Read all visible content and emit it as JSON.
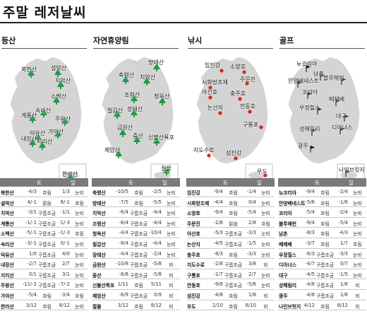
{
  "title": "주말 레저날씨",
  "columns": [
    {
      "name": "등산",
      "days": [
        "토",
        "일"
      ],
      "map_labels": [
        "북한산",
        "설악산",
        "치악산",
        "계룡산",
        "소백산",
        "속리산",
        "덕유산",
        "주왕산",
        "가야산",
        "내장산",
        "지리산",
        "한라산"
      ],
      "rows": [
        {
          "name": "북한산",
          "sat_temp": "-4/3",
          "sat_weather": "흐림",
          "sun_temp": "1/3",
          "sun_weather": "눈비"
        },
        {
          "name": "설악산",
          "sat_temp": "4/-1",
          "sat_weather": "맑음",
          "sun_temp": "8/-1",
          "sun_weather": "흐림"
        },
        {
          "name": "치악산",
          "sat_temp": "-3/1",
          "sat_weather": "구름조금",
          "sun_temp": "-1/1",
          "sun_weather": "눈비"
        },
        {
          "name": "계룡산",
          "sat_temp": "-1/-1",
          "sat_weather": "구름조금",
          "sun_temp": "-1/-3",
          "sun_weather": "눈비"
        },
        {
          "name": "소백산",
          "sat_temp": "-5/-1",
          "sat_weather": "구름조금",
          "sun_temp": "-1/-3",
          "sun_weather": "흐림"
        },
        {
          "name": "속리산",
          "sat_temp": "-3/-1",
          "sat_weather": "구름조금",
          "sun_temp": "0/-1",
          "sun_weather": "눈비"
        },
        {
          "name": "덕유산",
          "sat_temp": "1/0",
          "sat_weather": "구름조금",
          "sun_temp": "4/0",
          "sun_weather": "눈비"
        },
        {
          "name": "내장산",
          "sat_temp": "-2/7",
          "sat_weather": "구름조금",
          "sun_temp": "2/7",
          "sun_weather": "눈비"
        },
        {
          "name": "지리산",
          "sat_temp": "0/1",
          "sat_weather": "구름조금",
          "sun_temp": "3/1",
          "sun_weather": "눈비"
        },
        {
          "name": "주왕산",
          "sat_temp": "-11/-2",
          "sat_weather": "구름조금",
          "sun_temp": "-7/-2",
          "sun_weather": "눈비"
        },
        {
          "name": "가야산",
          "sat_temp": "-5/4",
          "sat_weather": "흐림",
          "sun_temp": "-3/4",
          "sun_weather": "흐림"
        },
        {
          "name": "한라산",
          "sat_temp": "3/12",
          "sat_weather": "흐림",
          "sun_temp": "8/12",
          "sun_weather": "눈비"
        }
      ]
    },
    {
      "name": "자연휴양림",
      "days": [
        "토",
        "일"
      ],
      "map_labels": [
        "방태산",
        "축령산",
        "치악산",
        "조령산",
        "청옥산",
        "칠갑산",
        "장태산",
        "금원산",
        "중산",
        "신불산폭포",
        "제암산",
        "절물"
      ],
      "rows": [
        {
          "name": "축령산",
          "sat_temp": "-10/5",
          "sat_weather": "흐림",
          "sun_temp": "-2/5",
          "sun_weather": "눈비"
        },
        {
          "name": "방태산",
          "sat_temp": "-7/5",
          "sat_weather": "흐림",
          "sun_temp": "-5/5",
          "sun_weather": "눈비"
        },
        {
          "name": "치악산",
          "sat_temp": "-6/4",
          "sat_weather": "구름조금",
          "sun_temp": "-4/4",
          "sun_weather": "눈비"
        },
        {
          "name": "조령산",
          "sat_temp": "-6/4",
          "sat_weather": "구름조금",
          "sun_temp": "-4/4",
          "sun_weather": "눈비"
        },
        {
          "name": "청옥산",
          "sat_temp": "-4/4",
          "sat_weather": "구름조금",
          "sun_temp": "-10/4",
          "sun_weather": "눈비"
        },
        {
          "name": "칠갑산",
          "sat_temp": "-8/4",
          "sat_weather": "구름조금",
          "sun_temp": "-4/4",
          "sun_weather": "눈비"
        },
        {
          "name": "장태산",
          "sat_temp": "-4/4",
          "sat_weather": "구름조금",
          "sun_temp": "-2/4",
          "sun_weather": "눈비"
        },
        {
          "name": "금원산",
          "sat_temp": "-10/8",
          "sat_weather": "구름조금",
          "sun_temp": "-5/8",
          "sun_weather": "비"
        },
        {
          "name": "중산",
          "sat_temp": "-6/8",
          "sat_weather": "구름조금",
          "sun_temp": "-5/8",
          "sun_weather": "비"
        },
        {
          "name": "신불산폭포",
          "sat_temp": "1/11",
          "sat_weather": "흐림",
          "sun_temp": "5/11",
          "sun_weather": "비"
        },
        {
          "name": "제암산",
          "sat_temp": "-6/9",
          "sat_weather": "구름조금",
          "sun_temp": "0/9",
          "sun_weather": "비"
        },
        {
          "name": "절물",
          "sat_temp": "3/12",
          "sat_weather": "흐림",
          "sun_temp": "8/12",
          "sun_weather": "비"
        }
      ]
    },
    {
      "name": "낚시",
      "days": [
        "토",
        "일"
      ],
      "map_labels": [
        "임진강",
        "소양호",
        "시화방조제",
        "주문진",
        "아산호",
        "충주호",
        "논산지",
        "안동호",
        "구룡포",
        "지도수로",
        "섬진강",
        "우도"
      ],
      "rows": [
        {
          "name": "임진강",
          "sat_temp": "-9/4",
          "sat_weather": "흐림",
          "sun_temp": "-1/4",
          "sun_weather": "눈비"
        },
        {
          "name": "시화방조제",
          "sat_temp": "-4/4",
          "sat_weather": "흐림",
          "sun_temp": "0/4",
          "sun_weather": "눈비"
        },
        {
          "name": "소양호",
          "sat_temp": "-9/4",
          "sat_weather": "흐림",
          "sun_temp": "-5/4",
          "sun_weather": "눈비"
        },
        {
          "name": "주문진",
          "sat_temp": "-2/8",
          "sat_weather": "맑음",
          "sun_temp": "2/8",
          "sun_weather": "흐림"
        },
        {
          "name": "아산호",
          "sat_temp": "-5/3",
          "sat_weather": "구름조금",
          "sun_temp": "-3/3",
          "sun_weather": "눈비"
        },
        {
          "name": "논산지",
          "sat_temp": "-4/5",
          "sat_weather": "구름조금",
          "sun_temp": "-1/5",
          "sun_weather": "눈비"
        },
        {
          "name": "충주호",
          "sat_temp": "-8/3",
          "sat_weather": "흐림",
          "sun_temp": "-3/3",
          "sun_weather": "눈비"
        },
        {
          "name": "지도수로",
          "sat_temp": "-2/8",
          "sat_weather": "구름조금",
          "sun_temp": "3/8",
          "sun_weather": "비"
        },
        {
          "name": "구룡포",
          "sat_temp": "-1/7",
          "sat_weather": "구름조금",
          "sun_temp": "2/7",
          "sun_weather": "눈비"
        },
        {
          "name": "안동호",
          "sat_temp": "-9/6",
          "sat_weather": "구름조금",
          "sun_temp": "-5/6",
          "sun_weather": "눈비"
        },
        {
          "name": "섬진강",
          "sat_temp": "-4/8",
          "sat_weather": "흐림",
          "sun_temp": "1/8",
          "sun_weather": "비"
        },
        {
          "name": "우도",
          "sat_temp": "2/10",
          "sat_weather": "흐림",
          "sun_temp": "8/10",
          "sun_weather": "비"
        }
      ]
    },
    {
      "name": "골프",
      "days": [
        "토",
        "일"
      ],
      "map_labels": [
        "뉴코리아",
        "남촌",
        "안양베네스트",
        "블루헤런",
        "코리아",
        "떼제베",
        "우정힐스",
        "대구",
        "성해림리",
        "디아너스",
        "광주",
        "나인브릿지"
      ],
      "rows": [
        {
          "name": "뉴코리아",
          "sat_temp": "-9/4",
          "sat_weather": "흐림",
          "sun_temp": "-2/4",
          "sun_weather": "눈비"
        },
        {
          "name": "안양베네스트",
          "sat_temp": "-5/6",
          "sat_weather": "흐림",
          "sun_temp": "-1/6",
          "sun_weather": "눈비"
        },
        {
          "name": "코리아",
          "sat_temp": "-5/4",
          "sat_weather": "흐림",
          "sun_temp": "-2/4",
          "sun_weather": "눈비"
        },
        {
          "name": "블루헤런",
          "sat_temp": "-9/4",
          "sat_weather": "흐림",
          "sun_temp": "-5/4",
          "sun_weather": "눈비"
        },
        {
          "name": "남촌",
          "sat_temp": "-8/3",
          "sat_weather": "흐림",
          "sun_temp": "-4/3",
          "sun_weather": "눈비"
        },
        {
          "name": "떼제베",
          "sat_temp": "-3/7",
          "sat_weather": "흐림",
          "sun_temp": "1/7",
          "sun_weather": "흐림"
        },
        {
          "name": "우정힐스",
          "sat_temp": "-6/3",
          "sat_weather": "구름조금",
          "sun_temp": "-3/3",
          "sun_weather": "눈비"
        },
        {
          "name": "디아너스",
          "sat_temp": "-4/7",
          "sat_weather": "구름조금",
          "sun_temp": "0/7",
          "sun_weather": "눈비"
        },
        {
          "name": "대구",
          "sat_temp": "-4/5",
          "sat_weather": "구름조금",
          "sun_temp": "-1/5",
          "sun_weather": "눈비"
        },
        {
          "name": "성해림리",
          "sat_temp": "-4/8",
          "sat_weather": "구름조금",
          "sun_temp": "1/8",
          "sun_weather": "비"
        },
        {
          "name": "광주",
          "sat_temp": "-4/8",
          "sat_weather": "구름조금",
          "sun_temp": "1/8",
          "sun_weather": "비"
        },
        {
          "name": "나인브릿지",
          "sat_temp": "4/12",
          "sat_weather": "흐림",
          "sun_temp": "8/12",
          "sun_weather": "비"
        }
      ]
    }
  ],
  "colors": {
    "map_fill": "#d4d4d4",
    "tree": "#1f9a4a",
    "fishing_dot": "#e0211e",
    "golf_flag": "#111111",
    "header_bg": "#7a7a7a"
  },
  "icons": {
    "hiking": "tree-icon",
    "forest": "tree-icon",
    "fishing": "dot-icon",
    "golf": "flag-icon"
  }
}
